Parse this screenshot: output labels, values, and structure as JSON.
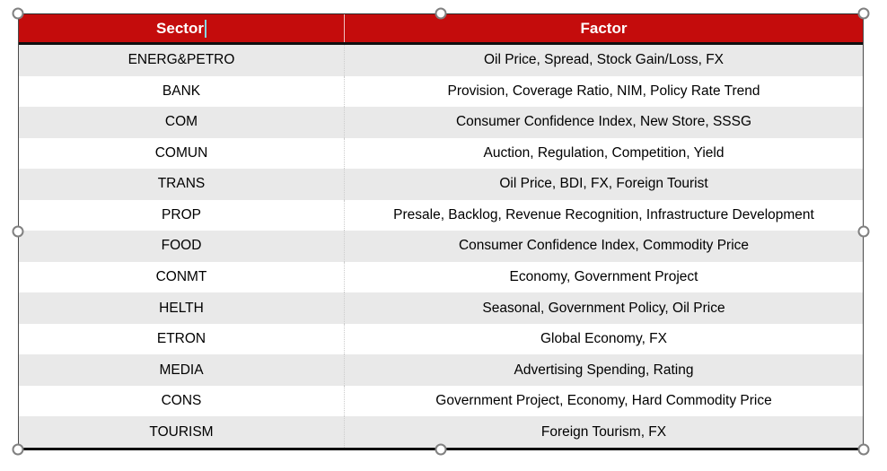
{
  "table": {
    "columns": [
      {
        "label": "Sector"
      },
      {
        "label": "Factor"
      }
    ],
    "rows": [
      {
        "sector": "ENERG&PETRO",
        "factor": "Oil Price, Spread, Stock Gain/Loss, FX"
      },
      {
        "sector": "BANK",
        "factor": "Provision, Coverage Ratio, NIM, Policy Rate Trend"
      },
      {
        "sector": "COM",
        "factor": "Consumer Confidence Index, New Store, SSSG"
      },
      {
        "sector": "COMUN",
        "factor": "Auction, Regulation, Competition, Yield"
      },
      {
        "sector": "TRANS",
        "factor": "Oil Price, BDI, FX, Foreign Tourist"
      },
      {
        "sector": "PROP",
        "factor": "Presale, Backlog, Revenue Recognition, Infrastructure Development"
      },
      {
        "sector": "FOOD",
        "factor": "Consumer Confidence Index, Commodity Price"
      },
      {
        "sector": "CONMT",
        "factor": "Economy, Government Project"
      },
      {
        "sector": "HELTH",
        "factor": "Seasonal, Government Policy, Oil Price"
      },
      {
        "sector": "ETRON",
        "factor": "Global Economy, FX"
      },
      {
        "sector": "MEDIA",
        "factor": "Advertising Spending, Rating"
      },
      {
        "sector": "CONS",
        "factor": "Government Project, Economy, Hard Commodity Price"
      },
      {
        "sector": "TOURISM",
        "factor": "Foreign Tourism, FX"
      }
    ]
  },
  "colors": {
    "header_bg": "#C40C0C",
    "header_text": "#FFFFFF",
    "row_alt_bg": "#E9E9E9",
    "row_bg": "#FFFFFF",
    "body_text": "#000000",
    "caret": "#86D8E8"
  }
}
